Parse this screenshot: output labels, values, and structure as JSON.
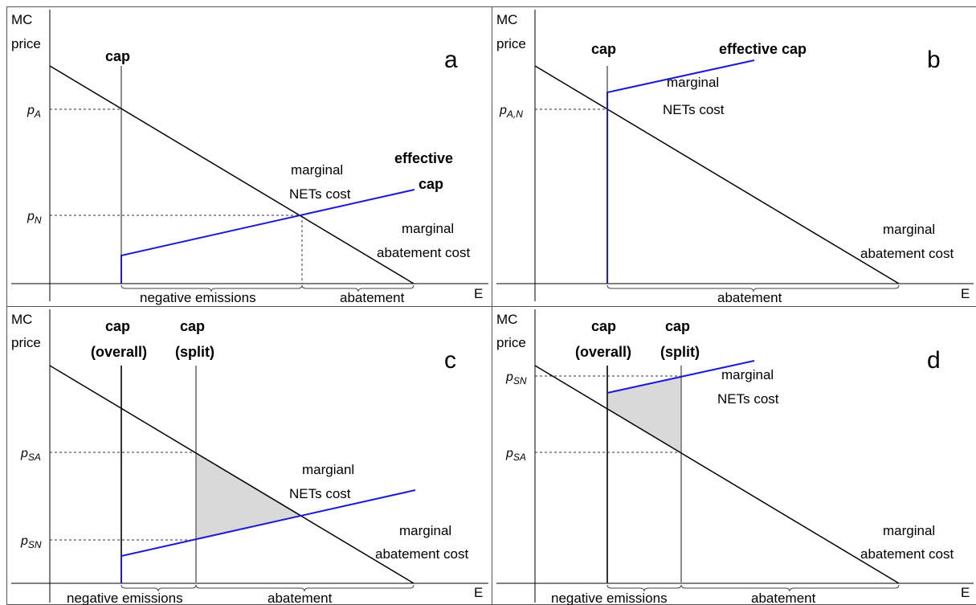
{
  "panels": {
    "a": {
      "letter": "a",
      "y_label_1": "MC",
      "y_label_2": "price",
      "x_label": "E",
      "cap_label": "cap",
      "effective_cap_1": "effective",
      "effective_cap_2": "cap",
      "nets_cost_1": "marginal",
      "nets_cost_2": "NETs cost",
      "abatement_cost_1": "marginal",
      "abatement_cost_2": "abatement cost",
      "price_1_main": "p",
      "price_1_sub": "A",
      "price_2_main": "p",
      "price_2_sub": "N",
      "brace_1": "negative emissions",
      "brace_2": "abatement"
    },
    "b": {
      "letter": "b",
      "y_label_1": "MC",
      "y_label_2": "price",
      "x_label": "E",
      "cap_label": "cap",
      "effective_cap": "effective cap",
      "nets_cost_1": "marginal",
      "nets_cost_2": "NETs cost",
      "abatement_cost_1": "marginal",
      "abatement_cost_2": "abatement cost",
      "price_1_main": "p",
      "price_1_sub": "A,N",
      "brace_1": "abatement"
    },
    "c": {
      "letter": "c",
      "y_label_1": "MC",
      "y_label_2": "price",
      "x_label": "E",
      "cap_overall_1": "cap",
      "cap_overall_2": "(overall)",
      "cap_split_1": "cap",
      "cap_split_2": "(split)",
      "nets_cost_1": "margianl",
      "nets_cost_2": "NETs cost",
      "abatement_cost_1": "marginal",
      "abatement_cost_2": "abatement cost",
      "price_1_main": "p",
      "price_1_sub": "SA",
      "price_2_main": "p",
      "price_2_sub": "SN",
      "brace_1": "negative emissions",
      "brace_2": "abatement"
    },
    "d": {
      "letter": "d",
      "y_label_1": "MC",
      "y_label_2": "price",
      "x_label": "E",
      "cap_overall_1": "cap",
      "cap_overall_2": "(overall)",
      "cap_split_1": "cap",
      "cap_split_2": "(split)",
      "nets_cost_1": "marginal",
      "nets_cost_2": "NETs cost",
      "abatement_cost_1": "marginal",
      "abatement_cost_2": "abatement cost",
      "price_1_main": "p",
      "price_1_sub": "SN",
      "price_2_main": "p",
      "price_2_sub": "SA",
      "brace_1": "negative emissions",
      "brace_2": "abatement"
    }
  },
  "colors": {
    "abatement_curve": "#000000",
    "nets_curve": "#1a1adb",
    "cap_line": "#8c8c8c",
    "cap_overall_line": "#333333",
    "shaded_area": "#d9d9d9",
    "guide_line": "#333333"
  }
}
